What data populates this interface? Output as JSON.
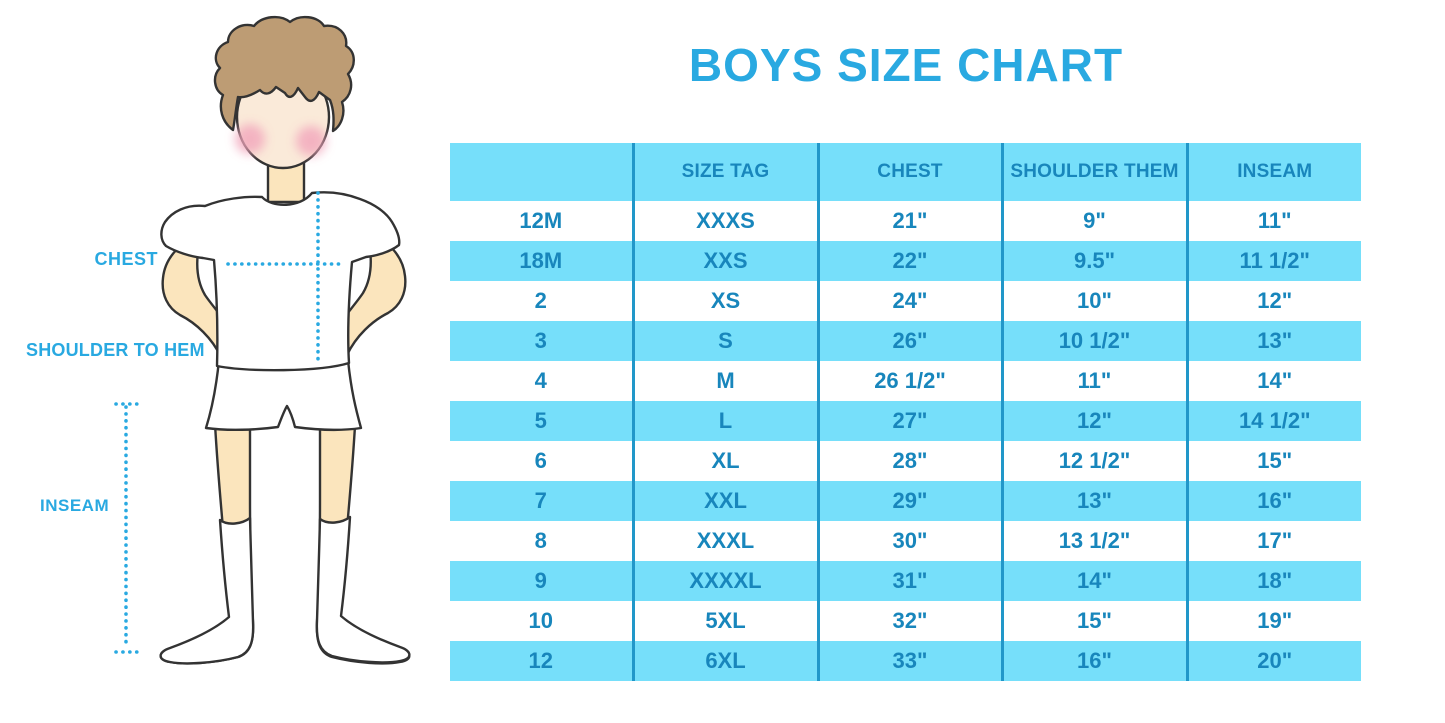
{
  "title": "BOYS SIZE CHART",
  "diagram": {
    "labels": {
      "chest": "CHEST",
      "shoulder_to_hem": "SHOULDER TO HEM",
      "inseam": "INSEAM"
    }
  },
  "chart_data": {
    "type": "table",
    "title": "BOYS SIZE CHART",
    "columns": [
      "",
      "SIZE TAG",
      "CHEST",
      "SHOULDER THEM",
      "INSEAM"
    ],
    "rows": [
      [
        "12M",
        "XXXS",
        "21\"",
        "9\"",
        "11\""
      ],
      [
        "18M",
        "XXS",
        "22\"",
        "9.5\"",
        "11 1/2\""
      ],
      [
        "2",
        "XS",
        "24\"",
        "10\"",
        "12\""
      ],
      [
        "3",
        "S",
        "26\"",
        "10 1/2\"",
        "13\""
      ],
      [
        "4",
        "M",
        "26 1/2\"",
        "11\"",
        "14\""
      ],
      [
        "5",
        "L",
        "27\"",
        "12\"",
        "14 1/2\""
      ],
      [
        "6",
        "XL",
        "28\"",
        "12 1/2\"",
        "15\""
      ],
      [
        "7",
        "XXL",
        "29\"",
        "13\"",
        "16\""
      ],
      [
        "8",
        "XXXL",
        "30\"",
        "13 1/2\"",
        "17\""
      ],
      [
        "9",
        "XXXXL",
        "31\"",
        "14\"",
        "18\""
      ],
      [
        "10",
        "5XL",
        "32\"",
        "15\"",
        "19\""
      ],
      [
        "12",
        "6XL",
        "33\"",
        "16\"",
        "20\""
      ]
    ],
    "row_stripe_pattern": "white rows alternating with light blue rows, starting white",
    "legend_position": "none",
    "grid": "vertical column dividers only"
  },
  "colors": {
    "accent_blue": "#29a9e1",
    "row_blue": "#76dffa",
    "divider_blue": "#2197c9",
    "table_text_blue": "#1886bc",
    "skin": "#fbe5bd",
    "face_skin": "#faead9",
    "hair_brown": "#bd9c74",
    "cheek_pink": "#f2a6bc",
    "outline_dark": "#333333"
  }
}
